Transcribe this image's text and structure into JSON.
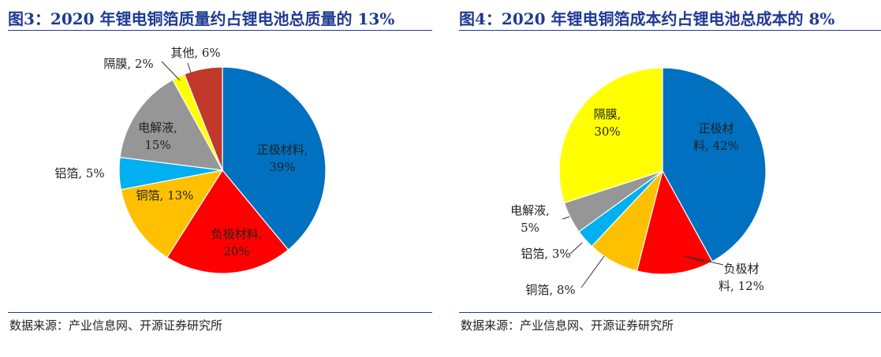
{
  "chart_data": [
    {
      "type": "pie",
      "title": "图3：2020 年锂电铜箔质量约占锂电池总质量的 13%",
      "source": "数据来源：产业信息网、开源证券研究所",
      "slices": [
        {
          "name": "正极材料",
          "label": [
            "正极材料,",
            "39%"
          ],
          "value": 39,
          "color": "#0070C0"
        },
        {
          "name": "负极材料",
          "label": [
            "负极材料,",
            "20%"
          ],
          "value": 20,
          "color": "#FF0000"
        },
        {
          "name": "铜箔",
          "label": [
            "铜箔, 13%"
          ],
          "value": 13,
          "color": "#FFC000"
        },
        {
          "name": "铝箔",
          "label": [
            "铝箔, 5%"
          ],
          "value": 5,
          "color": "#00B0F0"
        },
        {
          "name": "电解液",
          "label": [
            "电解液,",
            "15%"
          ],
          "value": 15,
          "color": "#969696"
        },
        {
          "name": "隔膜",
          "label": [
            "隔膜, 2%"
          ],
          "value": 2,
          "color": "#FFFF00"
        },
        {
          "name": "其他",
          "label": [
            "其他, 6%"
          ],
          "value": 6,
          "color": "#C0392B"
        }
      ]
    },
    {
      "type": "pie",
      "title": "图4：2020 年锂电铜箔成本约占锂电池总成本的 8%",
      "source": "数据来源：产业信息网、开源证券研究所",
      "slices": [
        {
          "name": "正极材料",
          "label": [
            "正极材",
            "料, 42%"
          ],
          "value": 42,
          "color": "#0070C0"
        },
        {
          "name": "负极材料",
          "label": [
            "负极材",
            "料, 12%"
          ],
          "value": 12,
          "color": "#FF0000"
        },
        {
          "name": "铜箔",
          "label": [
            "铜箔, 8%"
          ],
          "value": 8,
          "color": "#FFC000"
        },
        {
          "name": "铝箔",
          "label": [
            "铝箔, 3%"
          ],
          "value": 3,
          "color": "#00B0F0"
        },
        {
          "name": "电解液",
          "label": [
            "电解液,",
            "5%"
          ],
          "value": 5,
          "color": "#969696"
        },
        {
          "name": "隔膜",
          "label": [
            "隔膜,",
            "30%"
          ],
          "value": 30,
          "color": "#FFFF00"
        }
      ]
    }
  ]
}
